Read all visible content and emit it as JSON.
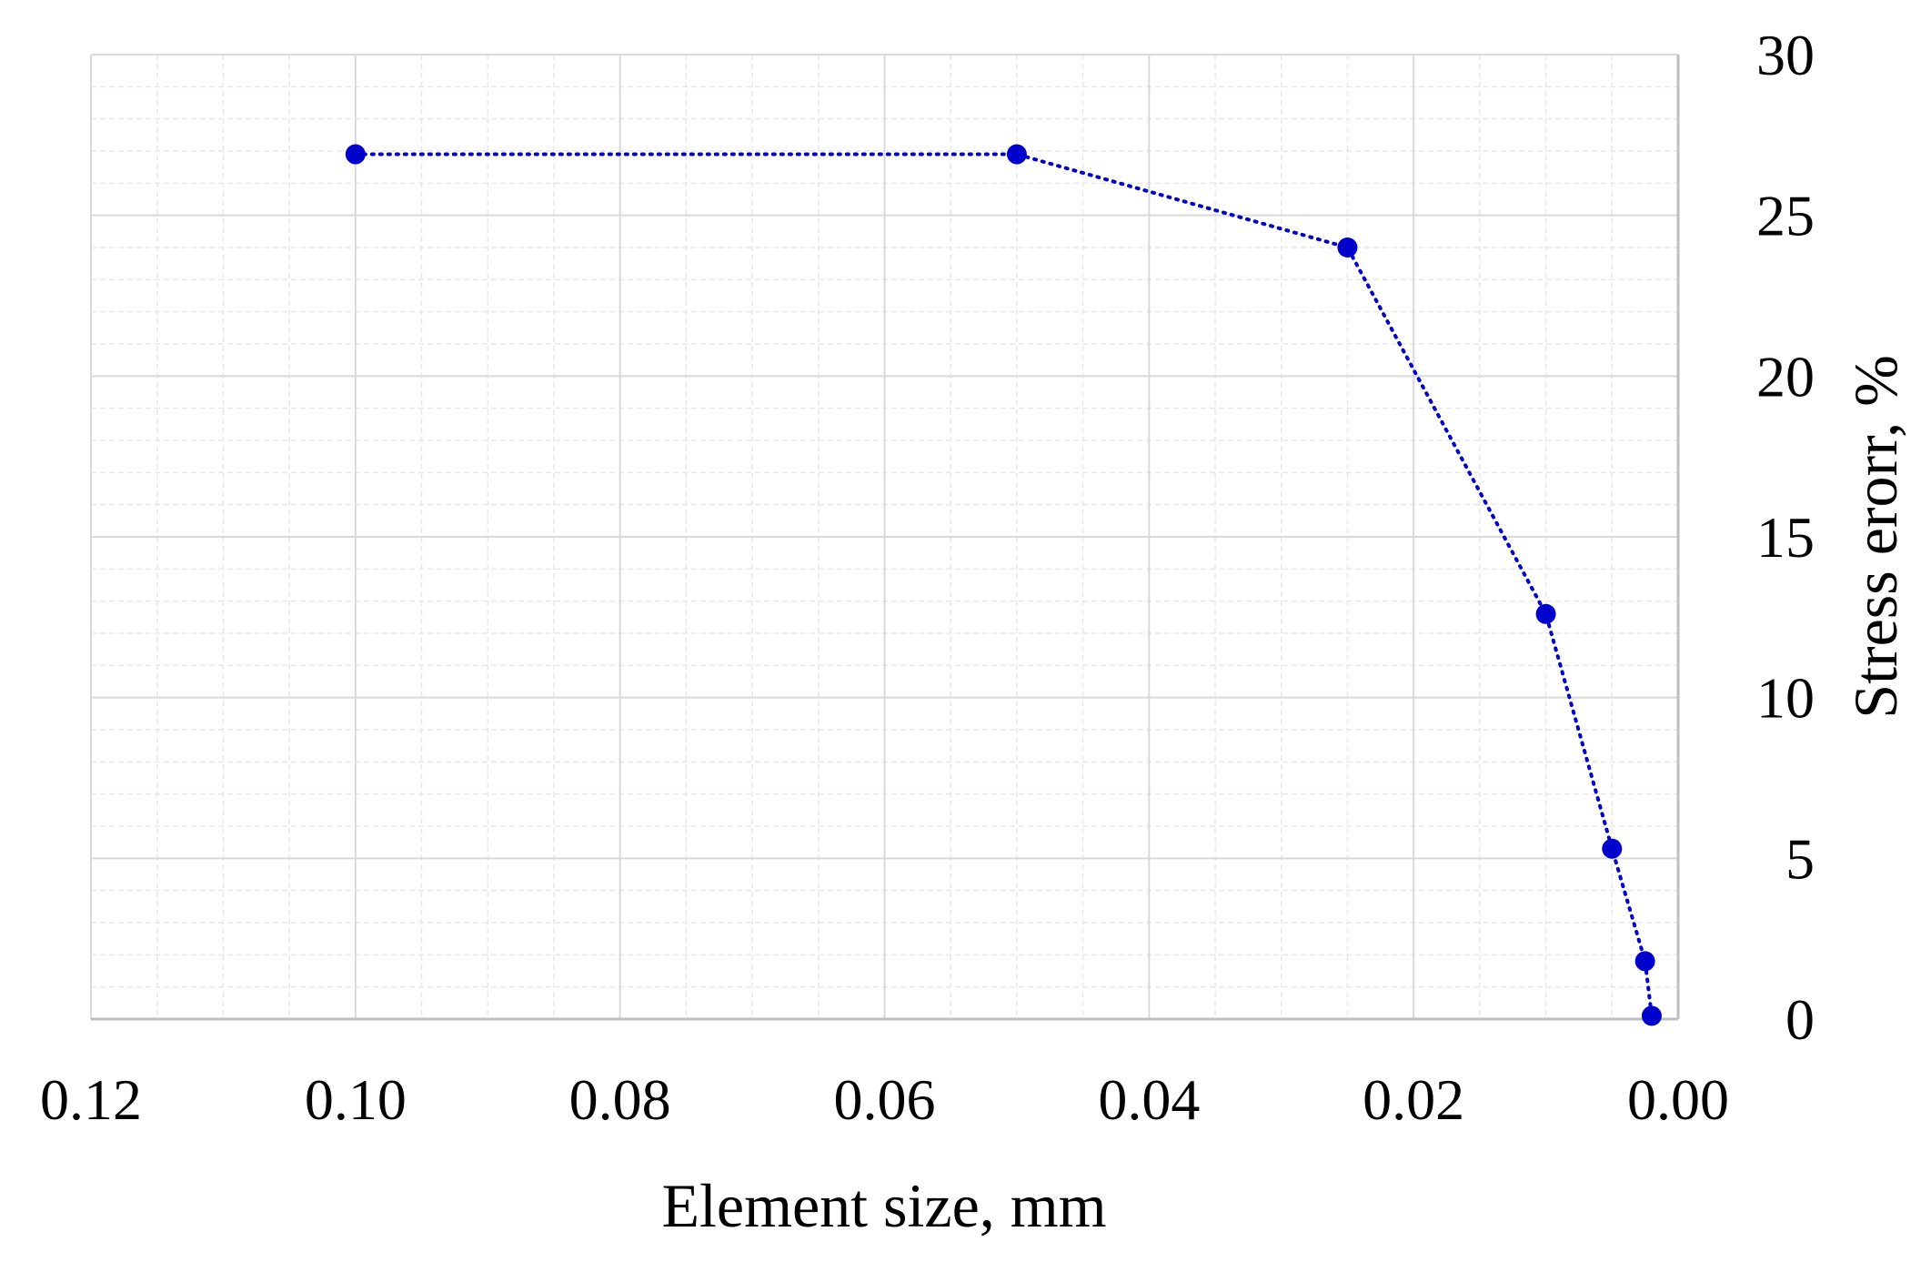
{
  "chart_data": {
    "type": "scatter",
    "title": "",
    "xlabel": "Element size, mm",
    "ylabel": "Stress erorr, %",
    "x_reversed": true,
    "xlim": [
      0.12,
      0.0
    ],
    "ylim": [
      0,
      30
    ],
    "x_ticks": [
      0.12,
      0.1,
      0.08,
      0.06,
      0.04,
      0.02,
      0.0
    ],
    "x_tick_labels": [
      "0.12",
      "0.10",
      "0.08",
      "0.06",
      "0.04",
      "0.02",
      "0.00"
    ],
    "y_ticks": [
      0,
      5,
      10,
      15,
      20,
      25,
      30
    ],
    "y_tick_labels": [
      "0",
      "5",
      "10",
      "15",
      "20",
      "25",
      "30"
    ],
    "y_axis_side": "right",
    "grid": true,
    "legend": "none",
    "line_style": "dotted",
    "series_color": "#0000cc",
    "grid_major_color": "#d9d9d9",
    "grid_minor_color": "#e8e8e8",
    "axis_color": "#bfbfbf",
    "series": [
      {
        "x": [
          0.1,
          0.05,
          0.025,
          0.01,
          0.005,
          0.0025,
          0.002
        ],
        "y": [
          26.9,
          26.9,
          24.0,
          12.6,
          5.3,
          1.8,
          0.1
        ]
      }
    ]
  }
}
